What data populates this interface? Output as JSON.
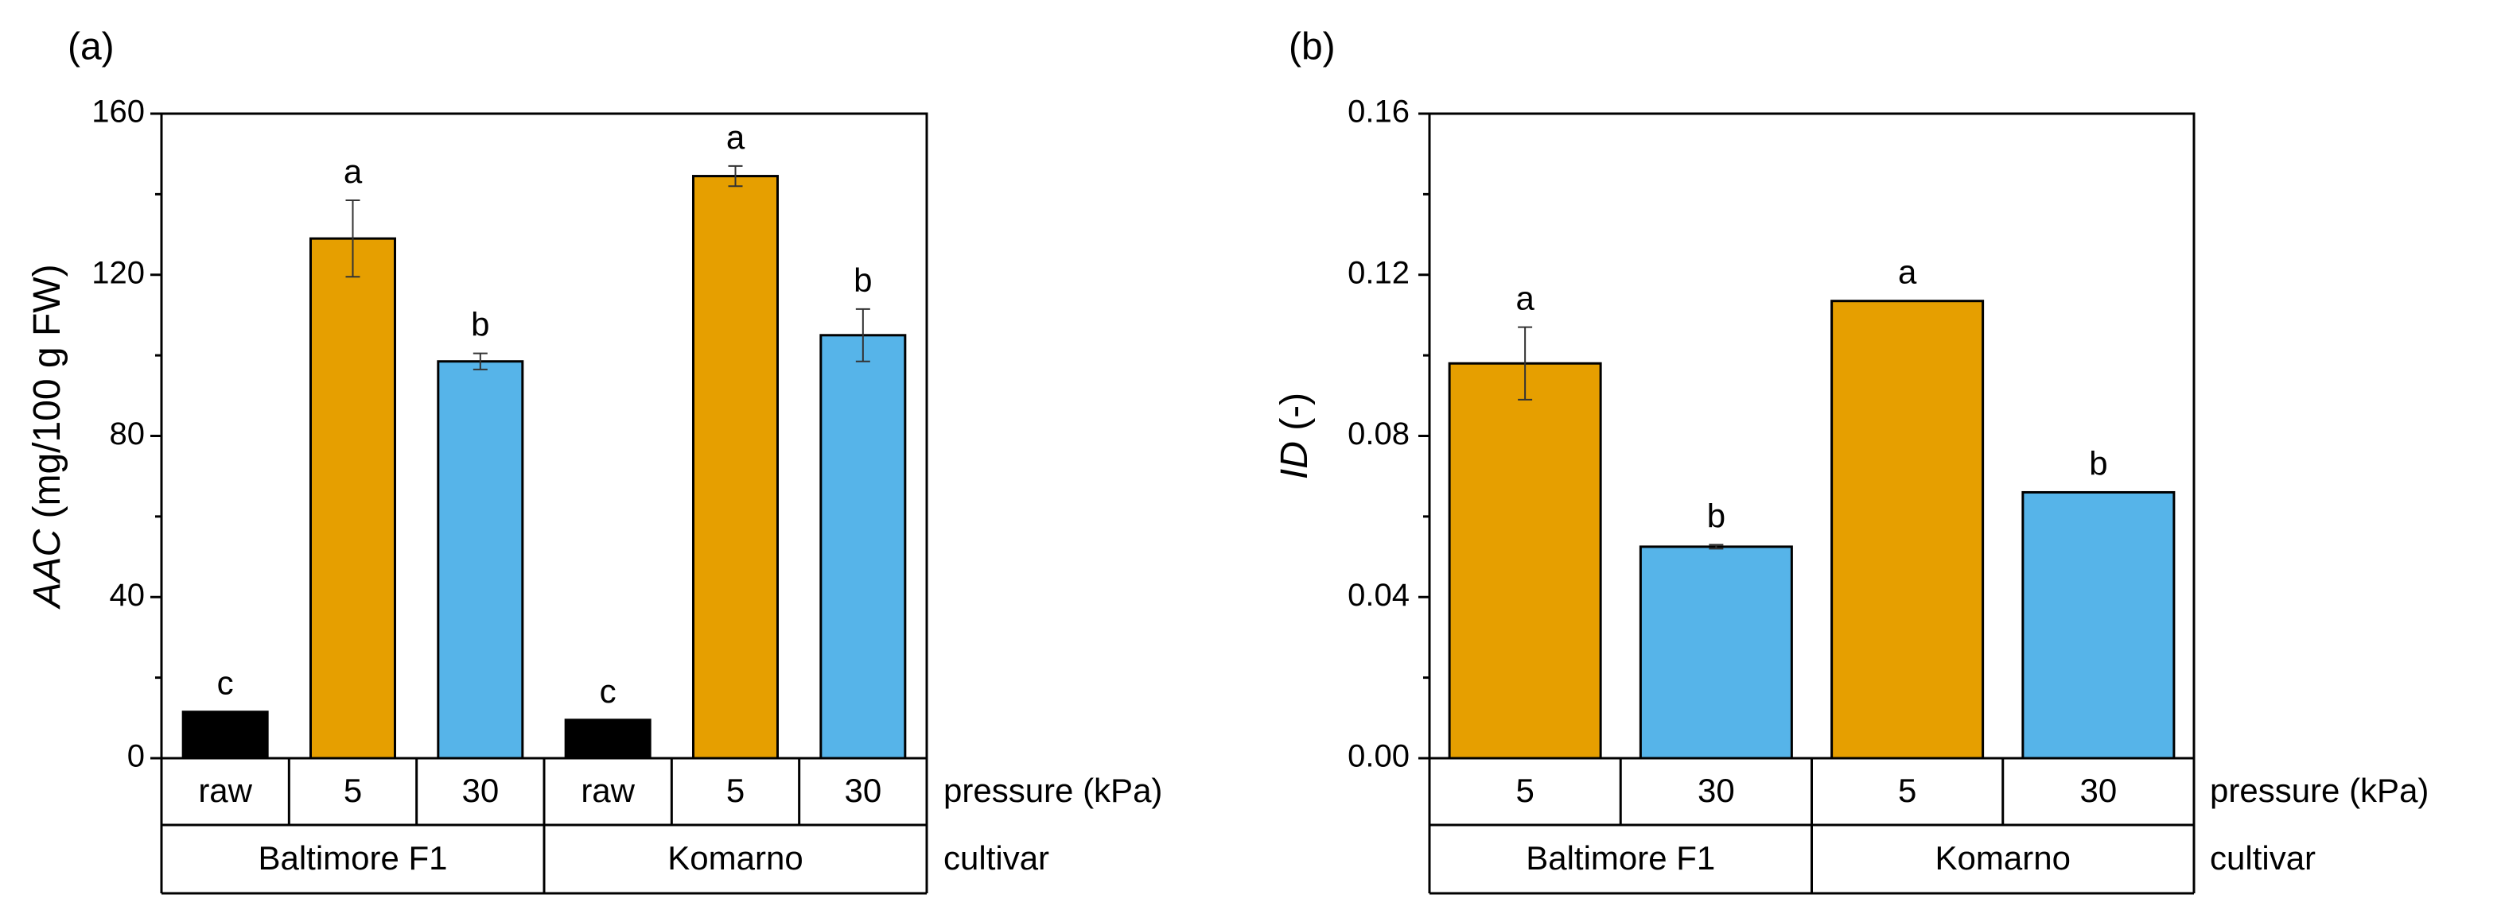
{
  "colors": {
    "raw": "#000000",
    "p5": "#E69F00",
    "p30": "#56B4E9",
    "axis": "#000000"
  },
  "chart_data": [
    {
      "panel_label": "(a)",
      "type": "bar",
      "ylabel_italic": "AAC",
      "ylabel_rest": " (mg/100 g FW)",
      "ylim": [
        0,
        160
      ],
      "yticks": [
        "0",
        "40",
        "80",
        "120",
        "160"
      ],
      "row1_title": "pressure (kPa)",
      "row2_title": "cultivar",
      "groups": [
        "Baltimore F1",
        "Komarno"
      ],
      "categories": [
        "raw",
        "5",
        "30",
        "raw",
        "5",
        "30"
      ],
      "values": [
        11.5,
        129,
        98.5,
        9.5,
        144.5,
        105
      ],
      "errors": [
        0,
        9.5,
        2,
        0,
        2.5,
        6.5
      ],
      "letters": [
        "c",
        "a",
        "b",
        "c",
        "a",
        "b"
      ],
      "bar_colors": [
        "raw",
        "p5",
        "p30",
        "raw",
        "p5",
        "p30"
      ]
    },
    {
      "panel_label": "(b)",
      "type": "bar",
      "ylabel_italic": "ID",
      "ylabel_rest": " (-)",
      "ylim": [
        0,
        0.16
      ],
      "yticks": [
        "0.00",
        "0.04",
        "0.08",
        "0.12",
        "0.16"
      ],
      "row1_title": "pressure (kPa)",
      "row2_title": "cultivar",
      "groups": [
        "Baltimore F1",
        "Komarno"
      ],
      "categories": [
        "5",
        "30",
        "5",
        "30"
      ],
      "values": [
        0.098,
        0.0525,
        0.1135,
        0.066
      ],
      "errors": [
        0.009,
        0.0005,
        0,
        0
      ],
      "letters": [
        "a",
        "b",
        "a",
        "b"
      ],
      "bar_colors": [
        "p5",
        "p30",
        "p5",
        "p30"
      ]
    }
  ]
}
